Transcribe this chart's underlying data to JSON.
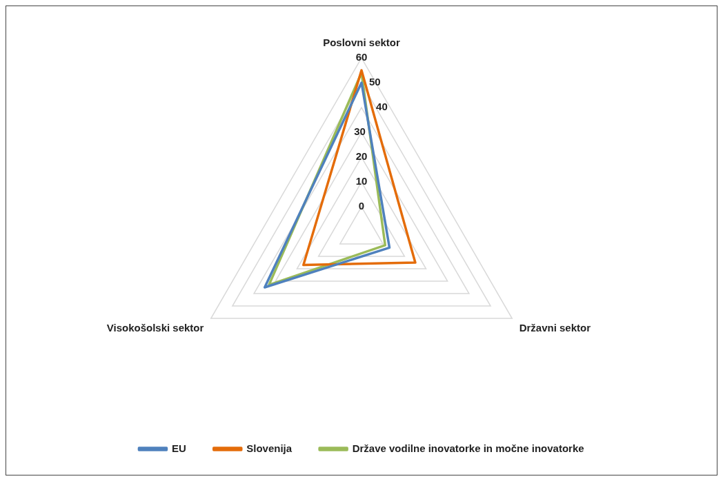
{
  "chart_data": {
    "type": "radar",
    "categories": [
      "Poslovni sektor",
      "Državni sektor",
      "Visokošolski sektor"
    ],
    "series": [
      {
        "name": "EU",
        "color": "#4f81bd",
        "values": [
          50,
          3,
          35
        ]
      },
      {
        "name": "Slovenija",
        "color": "#e46c0a",
        "values": [
          55,
          15,
          17
        ]
      },
      {
        "name": "Države vodilne inovatorke in močne inovatorke",
        "color": "#9bbb59",
        "values": [
          54,
          1,
          33
        ]
      }
    ],
    "ylim": [
      -10,
      60
    ],
    "yticks": [
      0,
      10,
      20,
      30,
      40,
      50,
      60
    ],
    "grid": true,
    "legend": "bottom",
    "marker": "none",
    "line_style": "solid"
  }
}
